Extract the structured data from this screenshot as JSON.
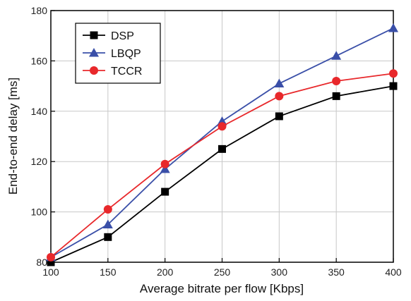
{
  "chart_data": {
    "type": "line",
    "xlabel": "Average bitrate per flow [Kbps]",
    "ylabel": "End-to-end delay [ms]",
    "x": [
      100,
      150,
      200,
      250,
      300,
      350,
      400
    ],
    "xlim": [
      100,
      400
    ],
    "ylim": [
      80,
      180
    ],
    "xticks": [
      "100",
      "150",
      "200",
      "250",
      "300",
      "350",
      "400"
    ],
    "yticks": [
      "80",
      "100",
      "120",
      "140",
      "160",
      "180"
    ],
    "grid": true,
    "legend_position": "top-left",
    "series": [
      {
        "name": "DSP",
        "marker": "square",
        "color": "#000000",
        "values": [
          80,
          90,
          108,
          125,
          138,
          146,
          150
        ]
      },
      {
        "name": "LBQP",
        "marker": "triangle",
        "color": "#3a4fa8",
        "values": [
          82,
          95,
          117,
          136,
          151,
          162,
          173
        ]
      },
      {
        "name": "TCCR",
        "marker": "circle",
        "color": "#e8282b",
        "values": [
          82,
          101,
          119,
          134,
          146,
          152,
          155
        ]
      }
    ]
  }
}
